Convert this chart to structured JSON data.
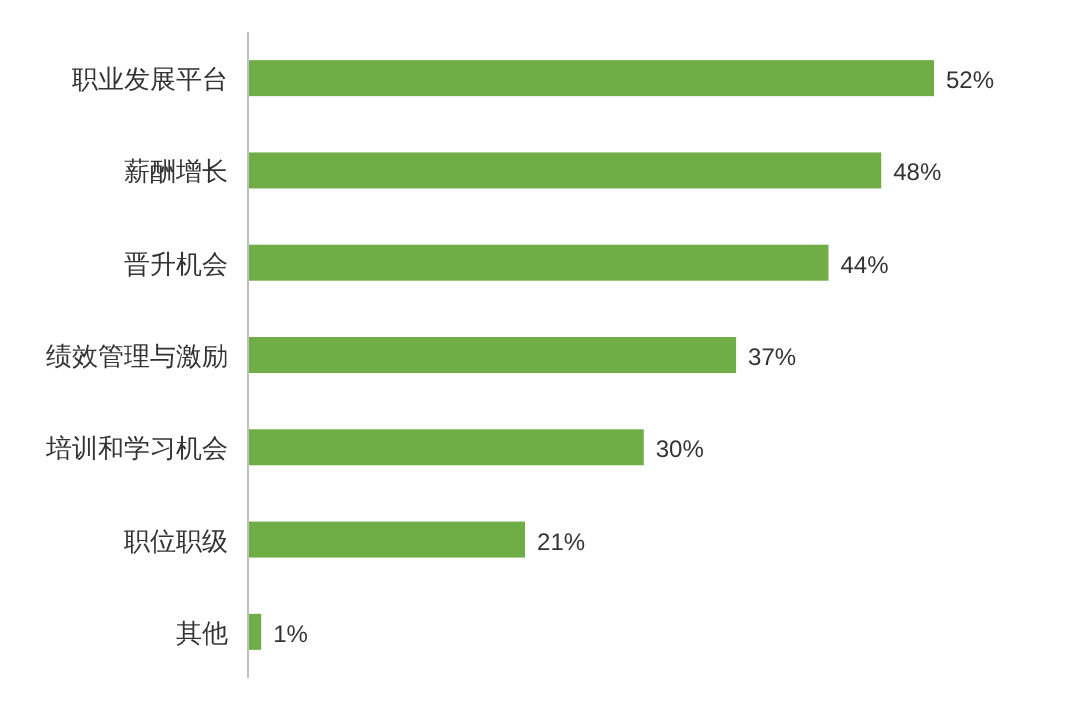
{
  "chart_data": {
    "type": "bar",
    "orientation": "horizontal",
    "categories": [
      "职业发展平台",
      "薪酬增长",
      "晋升机会",
      "绩效管理与激励",
      "培训和学习机会",
      "职位职级",
      "其他"
    ],
    "values": [
      52,
      48,
      44,
      37,
      30,
      21,
      1
    ],
    "value_labels": [
      "52%",
      "48%",
      "44%",
      "37%",
      "30%",
      "21%",
      "1%"
    ],
    "color": "#70ad47"
  }
}
